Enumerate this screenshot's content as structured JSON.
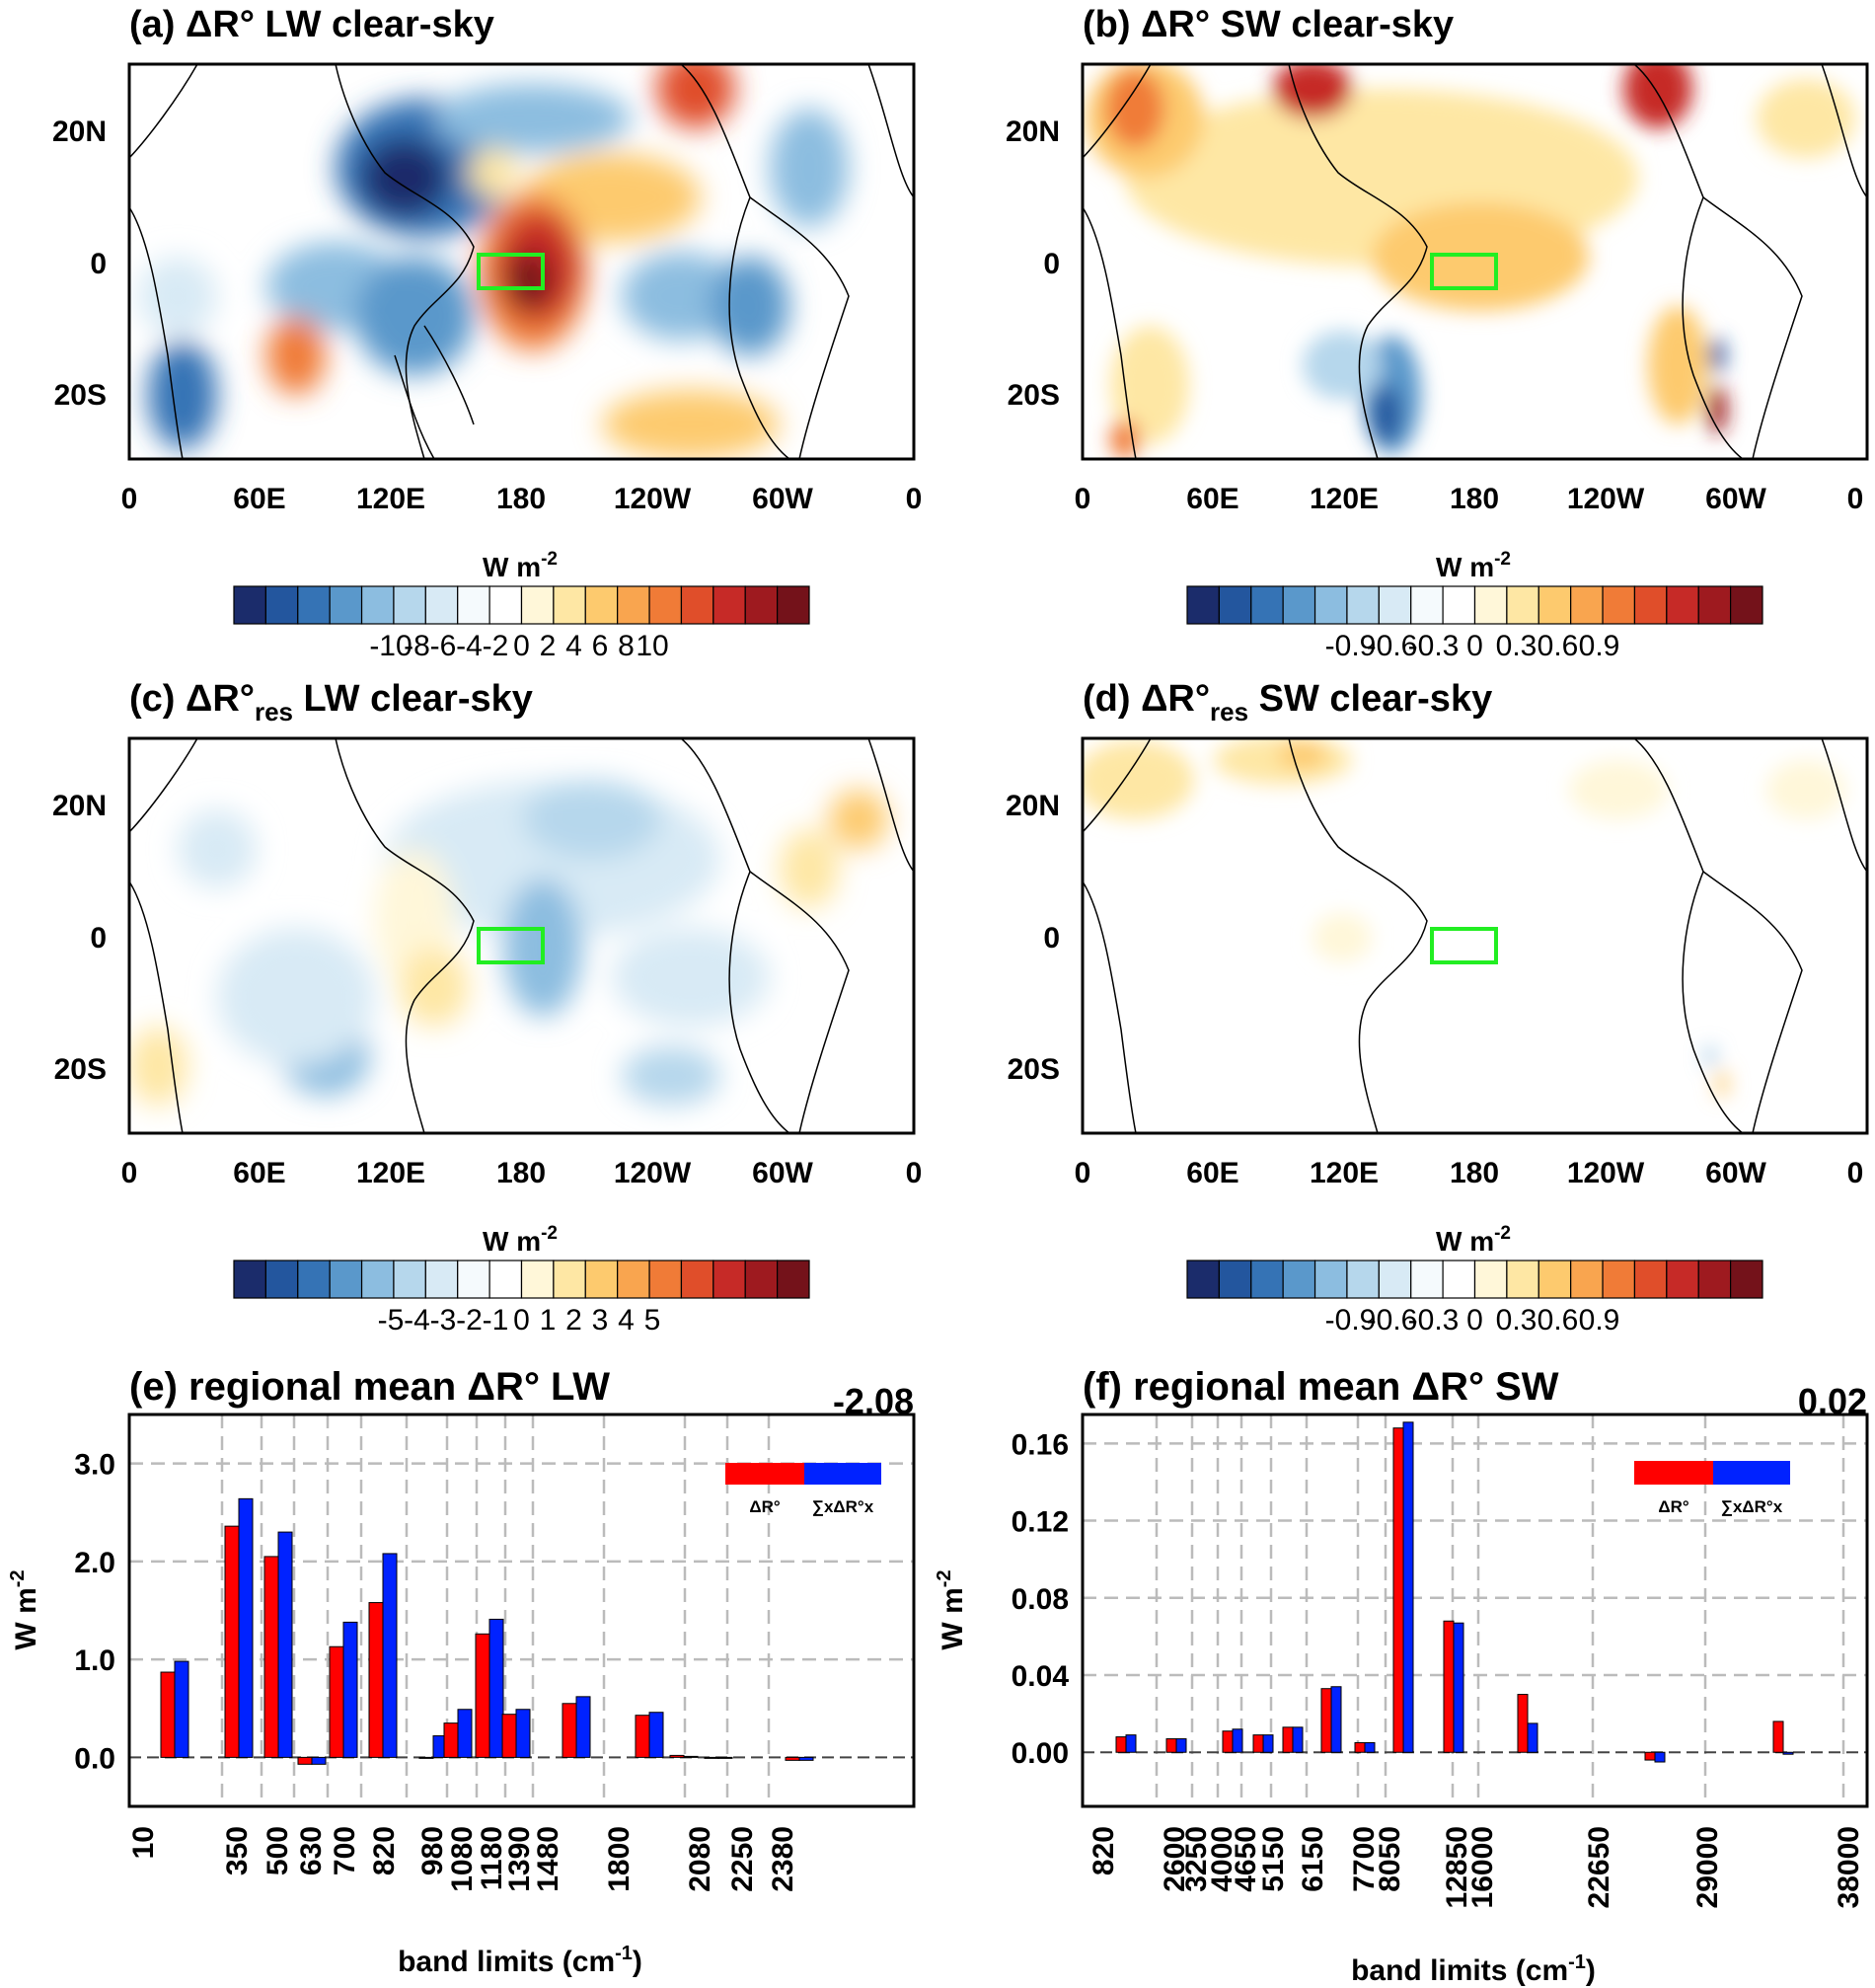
{
  "figure": {
    "unit_label": "W m",
    "unit_exp": "-2",
    "axis_xlabel": "band limits (cm",
    "axis_xlabel_exp": "-1",
    "axis_close": ")"
  },
  "maps": [
    {
      "id": "a",
      "title": "(a) ΔR° LW clear-sky",
      "sub": "",
      "lon_ticks": [
        "0",
        "60E",
        "120E",
        "180",
        "120W",
        "60W",
        "0"
      ],
      "lat_ticks": [
        "20N",
        "0",
        "20S"
      ],
      "cbar_ticks": [
        "-10",
        "-8",
        "-6",
        "-4",
        "-2",
        "0",
        "2",
        "4",
        "6",
        "8",
        "10"
      ]
    },
    {
      "id": "b",
      "title": "(b) ΔR° SW clear-sky",
      "sub": "",
      "lon_ticks": [
        "0",
        "60E",
        "120E",
        "180",
        "120W",
        "60W",
        "0"
      ],
      "lat_ticks": [
        "20N",
        "0",
        "20S"
      ],
      "cbar_ticks": [
        "-0.9",
        "-0.6",
        "-0.3",
        "0",
        "0.3",
        "0.6",
        "0.9"
      ]
    },
    {
      "id": "c",
      "title_pre": "(c) ΔR°",
      "sub": "res",
      "title_post": " LW clear-sky",
      "lon_ticks": [
        "0",
        "60E",
        "120E",
        "180",
        "120W",
        "60W",
        "0"
      ],
      "lat_ticks": [
        "20N",
        "0",
        "20S"
      ],
      "cbar_ticks": [
        "-5",
        "-4",
        "-3",
        "-2",
        "-1",
        "0",
        "1",
        "2",
        "3",
        "4",
        "5"
      ]
    },
    {
      "id": "d",
      "title_pre": "(d) ΔR°",
      "sub": "res",
      "title_post": " SW clear-sky",
      "lon_ticks": [
        "0",
        "60E",
        "120E",
        "180",
        "120W",
        "60W",
        "0"
      ],
      "lat_ticks": [
        "20N",
        "0",
        "20S"
      ],
      "cbar_ticks": [
        "-0.9",
        "-0.6",
        "-0.3",
        "0",
        "0.3",
        "0.6",
        "0.9"
      ]
    }
  ],
  "colors": {
    "scale": [
      "#1b2c6b",
      "#23569e",
      "#3573b5",
      "#5a98cb",
      "#8cbde0",
      "#b6d7ec",
      "#d8eaf5",
      "#f5fafd",
      "#ffffff",
      "#fff7d9",
      "#fee7a4",
      "#fdca6e",
      "#f9a54f",
      "#f07b37",
      "#e04e2a",
      "#c62a27",
      "#9e1a1f",
      "#74121a"
    ],
    "red": "#ff0000",
    "blue": "#0022ff",
    "box": "#22ee22",
    "grid": "#bbbbbb"
  },
  "chart_data": [
    {
      "id": "e",
      "type": "bar",
      "title": "(e) regional mean ΔR° LW",
      "total": "-2.08",
      "ylabel": "W m-2",
      "xlabel": "band limits (cm-1)",
      "ylim": [
        -0.5,
        3.5
      ],
      "yticks": [
        "0.0",
        "1.0",
        "2.0",
        "3.0"
      ],
      "ytick_values": [
        0,
        1,
        2,
        3
      ],
      "band_limits": [
        "10",
        "350",
        "500",
        "630",
        "700",
        "820",
        "980",
        "1080",
        "1180",
        "1390",
        "1480",
        "1800",
        "2080",
        "2250",
        "2380"
      ],
      "legend": [
        "ΔR°",
        "∑xΔR°x"
      ],
      "series": [
        {
          "name": "ΔR°",
          "values": [
            0.87,
            2.36,
            2.05,
            -0.07,
            1.13,
            1.58,
            0.0,
            0.35,
            1.26,
            0.44,
            0.55,
            0.43,
            0.02,
            0.0,
            -0.03
          ]
        },
        {
          "name": "∑xΔR°x",
          "values": [
            0.98,
            2.64,
            2.3,
            -0.07,
            1.38,
            2.08,
            0.22,
            0.49,
            1.41,
            0.49,
            0.62,
            0.46,
            0.01,
            0.0,
            -0.03
          ]
        }
      ]
    },
    {
      "id": "f",
      "type": "bar",
      "title": "(f) regional mean ΔR° SW",
      "total": "0.02",
      "ylabel": "W m-2",
      "xlabel": "band limits (cm-1)",
      "ylim": [
        -0.028,
        0.175
      ],
      "yticks": [
        "0.00",
        "0.04",
        "0.08",
        "0.12",
        "0.16"
      ],
      "ytick_values": [
        0,
        0.04,
        0.08,
        0.12,
        0.16
      ],
      "band_limits": [
        "820",
        "2600",
        "3250",
        "4000",
        "4650",
        "5150",
        "6150",
        "7700",
        "8050",
        "12850",
        "16000",
        "22650",
        "29000",
        "38000"
      ],
      "legend": [
        "ΔR°",
        "∑xΔR°x"
      ],
      "series": [
        {
          "name": "ΔR°",
          "values": [
            0.008,
            0.007,
            0.011,
            0.009,
            0.013,
            0.033,
            0.005,
            0.168,
            0.068,
            0.03,
            -0.004,
            0.016
          ]
        },
        {
          "name": "∑xΔR°x",
          "values": [
            0.009,
            0.007,
            0.012,
            0.009,
            0.013,
            0.034,
            0.005,
            0.171,
            0.067,
            0.015,
            -0.005,
            -0.001
          ]
        }
      ]
    }
  ]
}
